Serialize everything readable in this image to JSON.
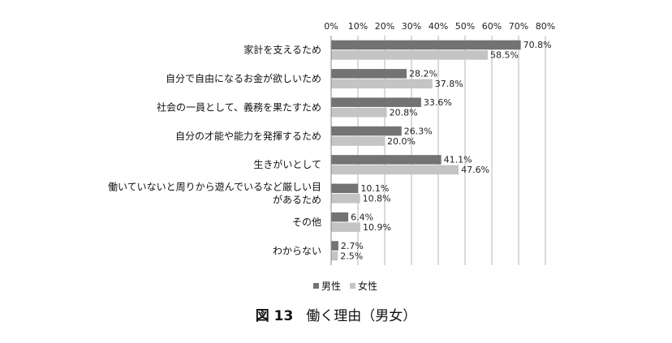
{
  "chart_data": {
    "type": "bar",
    "orientation": "horizontal",
    "x_tick_labels": [
      "0%",
      "10%",
      "20%",
      "30%",
      "40%",
      "50%",
      "60%",
      "70%",
      "80%"
    ],
    "xlim": [
      0,
      80
    ],
    "grid": true,
    "legend_placement": "bottom",
    "categories": [
      [
        "家計を支えるため"
      ],
      [
        "自分で自由になるお金が欲しいため"
      ],
      [
        "社会の一員として、義務を果たすため"
      ],
      [
        "自分の才能や能力を発揮するため"
      ],
      [
        "生きがいとして"
      ],
      [
        "働いていないと周りから遊んでいるなど厳しい目",
        "があるため"
      ],
      [
        "その他"
      ],
      [
        "わからない"
      ]
    ],
    "series": [
      {
        "name": "男性",
        "color": "#737373",
        "values": [
          70.8,
          28.2,
          33.6,
          26.3,
          41.1,
          10.1,
          6.4,
          2.7
        ],
        "labels": [
          "70.8%",
          "28.2%",
          "33.6%",
          "26.3%",
          "41.1%",
          "10.1%",
          "6.4%",
          "2.7%"
        ]
      },
      {
        "name": "女性",
        "color": "#c4c4c4",
        "values": [
          58.5,
          37.8,
          20.8,
          20.0,
          47.6,
          10.8,
          10.9,
          2.5
        ],
        "labels": [
          "58.5%",
          "37.8%",
          "20.8%",
          "20.0%",
          "47.6%",
          "10.8%",
          "10.9%",
          "2.5%"
        ]
      }
    ]
  },
  "caption": {
    "figure_label": "図 13",
    "title": "働く理由（男女）"
  }
}
